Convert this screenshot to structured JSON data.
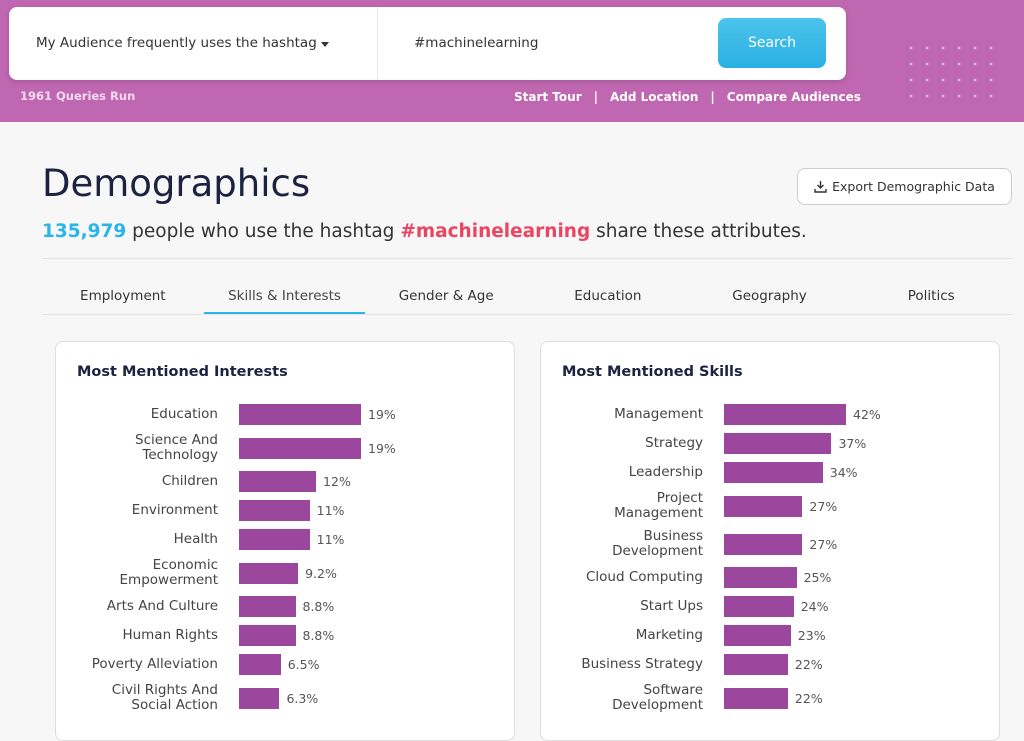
{
  "header": {
    "query_type": "My Audience frequently uses the hashtag",
    "query": "#machinelearning",
    "search_button": "Search",
    "queries_run": "1961 Queries Run",
    "links": [
      "Start Tour",
      "Add Location",
      "Compare Audiences"
    ],
    "separators": [
      "|",
      "|"
    ]
  },
  "page": {
    "title": "Demographics",
    "export_button": "Export Demographic Data",
    "count": "135,979",
    "subtitle_before": "people who use the hashtag",
    "hashtag": "#machinelearning",
    "subtitle_after": "share these attributes."
  },
  "tabs": {
    "items": [
      "Employment",
      "Skills & Interests",
      "Gender & Age",
      "Education",
      "Geography",
      "Politics"
    ],
    "active": 1
  },
  "panels": [
    {
      "title": "Most Mentioned Interests",
      "color": "#9b479d",
      "categories": [
        "Education",
        "Science And\nTechnology",
        "Children",
        "Environment",
        "Health",
        "Economic\nEmpowerment",
        "Arts And Culture",
        "Human Rights",
        "Poverty Alleviation",
        "Civil Rights And\nSocial Action"
      ],
      "values": [
        19,
        19,
        12,
        11,
        11,
        9.2,
        8.8,
        8.8,
        6.5,
        6.3
      ],
      "value_labels": [
        "19%",
        "19%",
        "12%",
        "11%",
        "11%",
        "9.2%",
        "8.8%",
        "8.8%",
        "6.5%",
        "6.3%"
      ]
    },
    {
      "title": "Most Mentioned Skills",
      "color": "#9b479d",
      "categories": [
        "Management",
        "Strategy",
        "Leadership",
        "Project\nManagement",
        "Business\nDevelopment",
        "Cloud Computing",
        "Start Ups",
        "Marketing",
        "Business Strategy",
        "Software\nDevelopment"
      ],
      "values": [
        42,
        37,
        34,
        27,
        27,
        25,
        24,
        23,
        22,
        22
      ],
      "value_labels": [
        "42%",
        "37%",
        "34%",
        "27%",
        "27%",
        "25%",
        "24%",
        "23%",
        "22%",
        "22%"
      ]
    }
  ]
}
